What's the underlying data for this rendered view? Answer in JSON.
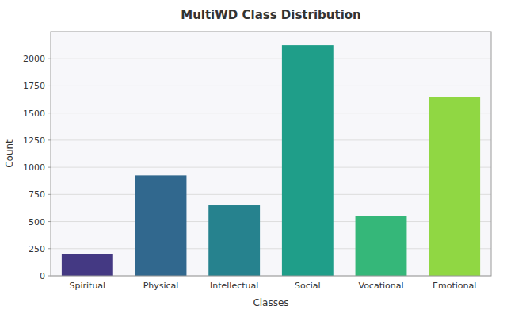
{
  "chart_data": {
    "type": "bar",
    "title": "MultiWD Class Distribution",
    "xlabel": "Classes",
    "ylabel": "Count",
    "categories": [
      "Spiritual",
      "Physical",
      "Intellectual",
      "Social",
      "Vocational",
      "Emotional"
    ],
    "values": [
      200,
      925,
      650,
      2125,
      555,
      1650
    ],
    "colors": [
      "#443983",
      "#31688e",
      "#26828e",
      "#1f9e89",
      "#35b779",
      "#90d743"
    ],
    "ylim": [
      0,
      2250
    ],
    "yticks": [
      0,
      250,
      500,
      750,
      1000,
      1250,
      1500,
      1750,
      2000
    ],
    "grid": true
  }
}
